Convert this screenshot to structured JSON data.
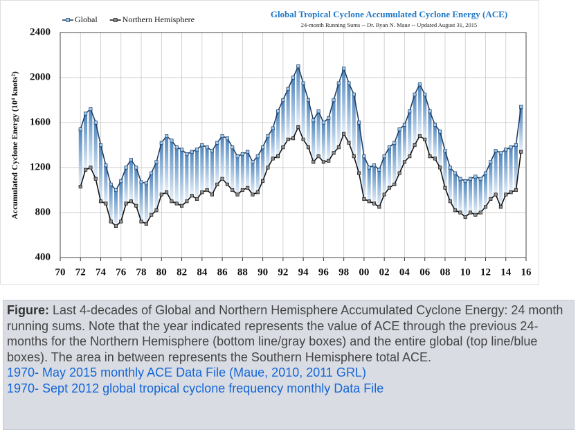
{
  "chart_data": {
    "type": "line",
    "title": "Global Tropical Cyclone Accumulated Cyclone Energy (ACE)",
    "subtitle": "24-month Running Sums -- Dr. Ryan N. Maue -- Updated August 31, 2015",
    "y_label": "Accumulated Cyclone Energy (10⁴ knots²)",
    "x": [
      1972.0,
      1972.5,
      1973.0,
      1973.5,
      1974.0,
      1974.5,
      1975.0,
      1975.5,
      1976.0,
      1976.5,
      1977.0,
      1977.5,
      1978.0,
      1978.5,
      1979.0,
      1979.5,
      1980.0,
      1980.5,
      1981.0,
      1981.5,
      1982.0,
      1982.5,
      1983.0,
      1983.5,
      1984.0,
      1984.5,
      1985.0,
      1985.5,
      1986.0,
      1986.5,
      1987.0,
      1987.5,
      1988.0,
      1988.5,
      1989.0,
      1989.5,
      1990.0,
      1990.5,
      1991.0,
      1991.5,
      1992.0,
      1992.5,
      1993.0,
      1993.5,
      1994.0,
      1994.5,
      1995.0,
      1995.5,
      1996.0,
      1996.5,
      1997.0,
      1997.5,
      1998.0,
      1998.5,
      1999.0,
      1999.5,
      2000.0,
      2000.5,
      2001.0,
      2001.5,
      2002.0,
      2002.5,
      2003.0,
      2003.5,
      2004.0,
      2004.5,
      2005.0,
      2005.5,
      2006.0,
      2006.5,
      2007.0,
      2007.5,
      2008.0,
      2008.5,
      2009.0,
      2009.5,
      2010.0,
      2010.5,
      2011.0,
      2011.5,
      2012.0,
      2012.5,
      2013.0,
      2013.5,
      2014.0,
      2014.5,
      2015.0,
      2015.5
    ],
    "series": [
      {
        "name": "Global",
        "color": "#1f3f66",
        "marker_color": "#9cc6ec",
        "values": [
          1540,
          1680,
          1720,
          1600,
          1400,
          1220,
          1050,
          1000,
          1080,
          1200,
          1270,
          1200,
          1070,
          1060,
          1150,
          1250,
          1420,
          1480,
          1440,
          1380,
          1360,
          1320,
          1340,
          1360,
          1400,
          1380,
          1350,
          1420,
          1480,
          1460,
          1380,
          1300,
          1320,
          1340,
          1250,
          1300,
          1380,
          1480,
          1550,
          1700,
          1800,
          1900,
          2000,
          2100,
          1950,
          1800,
          1620,
          1700,
          1600,
          1640,
          1800,
          1950,
          2080,
          1950,
          1850,
          1600,
          1300,
          1200,
          1220,
          1180,
          1300,
          1380,
          1420,
          1540,
          1580,
          1700,
          1850,
          1940,
          1850,
          1700,
          1580,
          1520,
          1350,
          1200,
          1150,
          1100,
          1080,
          1100,
          1120,
          1100,
          1150,
          1250,
          1350,
          1330,
          1360,
          1380,
          1400,
          1740
        ]
      },
      {
        "name": "Northern Hemisphere",
        "color": "#111111",
        "marker_color": "#8c8c8c",
        "values": [
          1030,
          1180,
          1200,
          1100,
          900,
          880,
          720,
          680,
          720,
          880,
          900,
          860,
          720,
          700,
          780,
          820,
          960,
          980,
          900,
          880,
          860,
          900,
          950,
          920,
          980,
          1000,
          960,
          1050,
          1100,
          1050,
          1000,
          960,
          1000,
          1020,
          960,
          980,
          1080,
          1200,
          1280,
          1300,
          1380,
          1450,
          1460,
          1560,
          1450,
          1380,
          1250,
          1300,
          1250,
          1260,
          1330,
          1380,
          1500,
          1420,
          1300,
          1150,
          920,
          900,
          880,
          850,
          960,
          1020,
          1050,
          1150,
          1250,
          1300,
          1400,
          1480,
          1450,
          1300,
          1280,
          1200,
          1020,
          900,
          820,
          800,
          760,
          800,
          780,
          800,
          850,
          920,
          960,
          850,
          960,
          980,
          1000,
          1340
        ]
      }
    ],
    "xlim": [
      1970,
      2016
    ],
    "xticks": [
      {
        "value": 1970,
        "label": "70"
      },
      {
        "value": 1972,
        "label": "72"
      },
      {
        "value": 1974,
        "label": "74"
      },
      {
        "value": 1976,
        "label": "76"
      },
      {
        "value": 1978,
        "label": "78"
      },
      {
        "value": 1980,
        "label": "80"
      },
      {
        "value": 1982,
        "label": "82"
      },
      {
        "value": 1984,
        "label": "84"
      },
      {
        "value": 1986,
        "label": "86"
      },
      {
        "value": 1988,
        "label": "88"
      },
      {
        "value": 1990,
        "label": "90"
      },
      {
        "value": 1992,
        "label": "92"
      },
      {
        "value": 1994,
        "label": "94"
      },
      {
        "value": 1996,
        "label": "96"
      },
      {
        "value": 1998,
        "label": "98"
      },
      {
        "value": 2000,
        "label": "00"
      },
      {
        "value": 2002,
        "label": "02"
      },
      {
        "value": 2004,
        "label": "04"
      },
      {
        "value": 2006,
        "label": "06"
      },
      {
        "value": 2008,
        "label": "08"
      },
      {
        "value": 2010,
        "label": "10"
      },
      {
        "value": 2012,
        "label": "12"
      },
      {
        "value": 2014,
        "label": "14"
      },
      {
        "value": 2016,
        "label": "16"
      }
    ],
    "ylim": [
      400,
      2400
    ],
    "yticks": [
      400,
      800,
      1200,
      1600,
      2000,
      2400
    ],
    "grid": true
  },
  "caption": {
    "label": "Figure:",
    "text": "Last 4-decades of Global and Northern Hemisphere Accumulated Cyclone Energy: 24 month running sums. Note that the year indicated represents the value of ACE through the previous 24-months for the Northern Hemisphere (bottom line/gray boxes) and the entire global (top line/blue boxes). The area in between represents the Southern Hemisphere total ACE.",
    "links": [
      "1970- May 2015 monthly ACE Data File (Maue, 2010, 2011 GRL)",
      "1970- Sept 2012 global tropical cyclone frequency monthly Data File"
    ]
  }
}
